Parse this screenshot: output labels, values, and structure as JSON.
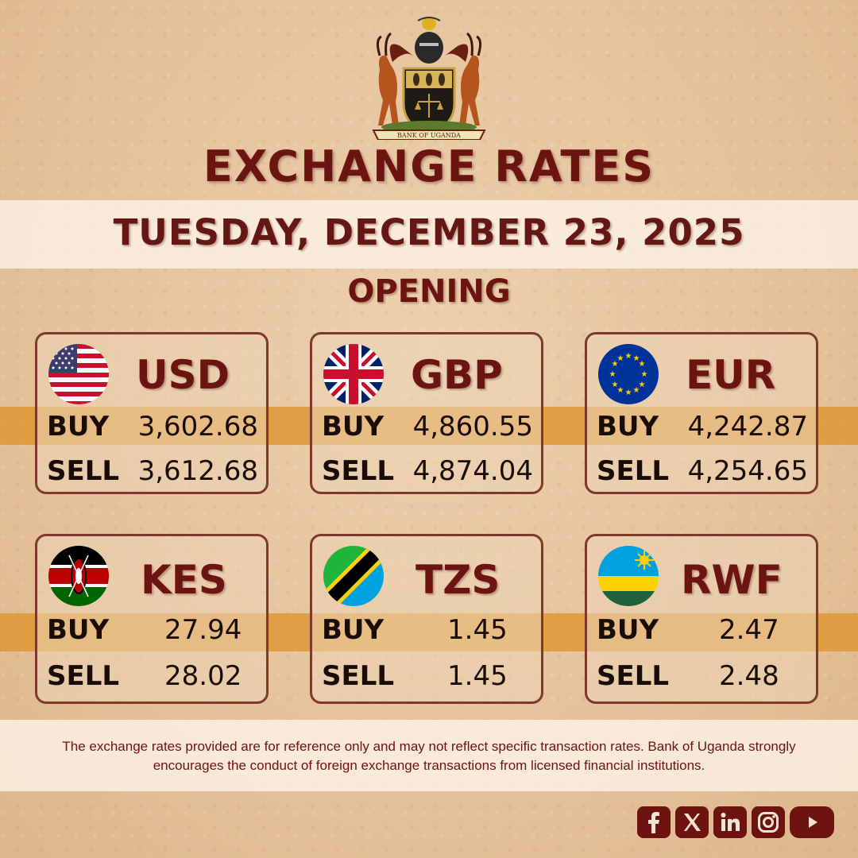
{
  "org": {
    "crest_text": "BANK OF UGANDA"
  },
  "header": {
    "title": "EXCHANGE RATES",
    "date": "TUESDAY, DECEMBER 23, 2025",
    "session": "OPENING"
  },
  "labels": {
    "buy": "BUY",
    "sell": "SELL"
  },
  "rates": [
    {
      "code": "USD",
      "flag": "us-flag-icon",
      "buy": "3,602.68",
      "sell": "3,612.68"
    },
    {
      "code": "GBP",
      "flag": "uk-flag-icon",
      "buy": "4,860.55",
      "sell": "4,874.04"
    },
    {
      "code": "EUR",
      "flag": "eu-flag-icon",
      "buy": "4,242.87",
      "sell": "4,254.65"
    },
    {
      "code": "KES",
      "flag": "kenya-flag-icon",
      "buy": "27.94",
      "sell": "28.02"
    },
    {
      "code": "TZS",
      "flag": "tanzania-flag-icon",
      "buy": "1.45",
      "sell": "1.45"
    },
    {
      "code": "RWF",
      "flag": "rwanda-flag-icon",
      "buy": "2.47",
      "sell": "2.48"
    }
  ],
  "disclaimer": "The exchange rates provided are for reference only and may not reflect specific transaction rates. Bank of Uganda strongly encourages the conduct of foreign exchange transactions from licensed financial institutions.",
  "socials": [
    "facebook-icon",
    "x-icon",
    "linkedin-icon",
    "instagram-icon",
    "youtube-icon"
  ],
  "colors": {
    "maroon": "#6b1410",
    "band": "#de9632",
    "background": "#e7c6a0"
  }
}
